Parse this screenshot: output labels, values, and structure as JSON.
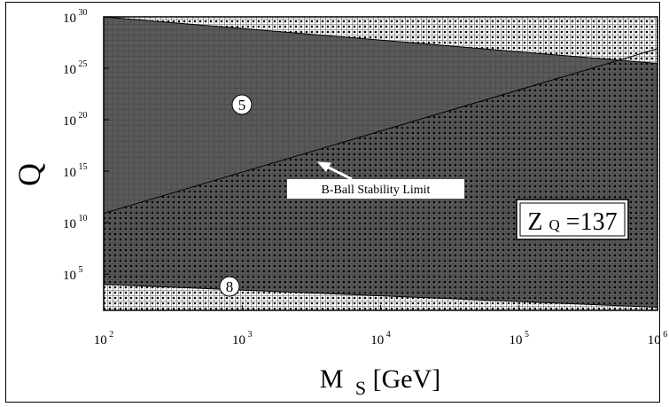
{
  "chart_data": {
    "type": "area",
    "title": "",
    "xlabel": {
      "main": "M",
      "sub": "S",
      "rest": "[GeV]"
    },
    "ylabel": "Q",
    "x_scale": "log",
    "y_scale": "log",
    "xlim": [
      100,
      1000000
    ],
    "ylim": [
      30,
      1e+30
    ],
    "grid": true,
    "x_ticks": [
      {
        "base": "10",
        "exp": "2",
        "value": 100
      },
      {
        "base": "10",
        "exp": "3",
        "value": 1000
      },
      {
        "base": "10",
        "exp": "4",
        "value": 10000
      },
      {
        "base": "10",
        "exp": "5",
        "value": 100000
      },
      {
        "base": "10",
        "exp": "6",
        "value": 1000000
      }
    ],
    "y_ticks": [
      {
        "base": "10",
        "exp": "5",
        "value": 100000.0
      },
      {
        "base": "10",
        "exp": "10",
        "value": 10000000000.0
      },
      {
        "base": "10",
        "exp": "15",
        "value": 1000000000000000.0
      },
      {
        "base": "10",
        "exp": "20",
        "value": 1e+20
      },
      {
        "base": "10",
        "exp": "25",
        "value": 1e+25
      },
      {
        "base": "10",
        "exp": "30",
        "value": 1e+30
      }
    ],
    "series": [
      {
        "x": [
          100,
          1000000
        ],
        "y": [
          1e+30,
          3e+25
        ],
        "fill": "#5a5a5a"
      },
      {
        "x": [
          100,
          1000000
        ],
        "y": [
          80000000000.0,
          8e+26
        ],
        "line": "#000000"
      },
      {
        "x": [
          100,
          1000000
        ],
        "y": [
          10000.0,
          60
        ],
        "fill": "#ffffff"
      }
    ],
    "annotations": [
      {
        "text": "5",
        "x": 1000,
        "y": 1e+21
      },
      {
        "text": "8",
        "x": 1000,
        "y": 3000.0
      },
      {
        "text": "B-Ball Stability Limit",
        "x": 3200,
        "y": 100000000000000.0
      }
    ],
    "zq_box": {
      "main": "Z",
      "sub": "Q",
      "rest": "=137"
    }
  }
}
